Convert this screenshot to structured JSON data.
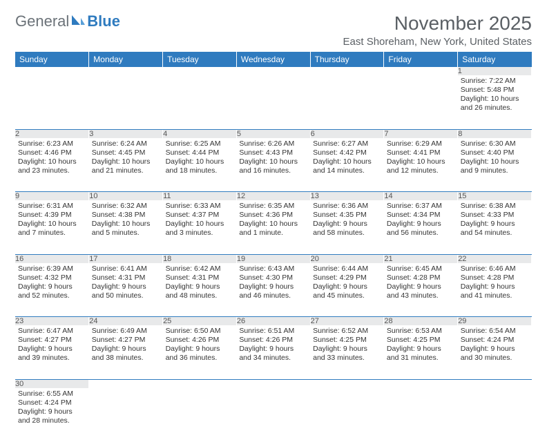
{
  "logo": {
    "word1": "General",
    "word2": "Blue"
  },
  "title": "November 2025",
  "location": "East Shoreham, New York, United States",
  "colors": {
    "header_bg": "#2f7bbf",
    "header_text": "#ffffff",
    "daynum_bg": "#e8e9ea",
    "border": "#2f7bbf",
    "text": "#333333",
    "logo_gray": "#6b7278",
    "logo_blue": "#2f7bbf"
  },
  "days_of_week": [
    "Sunday",
    "Monday",
    "Tuesday",
    "Wednesday",
    "Thursday",
    "Friday",
    "Saturday"
  ],
  "weeks": [
    [
      null,
      null,
      null,
      null,
      null,
      null,
      {
        "n": "1",
        "sr": "Sunrise: 7:22 AM",
        "ss": "Sunset: 5:48 PM",
        "dl": "Daylight: 10 hours and 26 minutes."
      }
    ],
    [
      {
        "n": "2",
        "sr": "Sunrise: 6:23 AM",
        "ss": "Sunset: 4:46 PM",
        "dl": "Daylight: 10 hours and 23 minutes."
      },
      {
        "n": "3",
        "sr": "Sunrise: 6:24 AM",
        "ss": "Sunset: 4:45 PM",
        "dl": "Daylight: 10 hours and 21 minutes."
      },
      {
        "n": "4",
        "sr": "Sunrise: 6:25 AM",
        "ss": "Sunset: 4:44 PM",
        "dl": "Daylight: 10 hours and 18 minutes."
      },
      {
        "n": "5",
        "sr": "Sunrise: 6:26 AM",
        "ss": "Sunset: 4:43 PM",
        "dl": "Daylight: 10 hours and 16 minutes."
      },
      {
        "n": "6",
        "sr": "Sunrise: 6:27 AM",
        "ss": "Sunset: 4:42 PM",
        "dl": "Daylight: 10 hours and 14 minutes."
      },
      {
        "n": "7",
        "sr": "Sunrise: 6:29 AM",
        "ss": "Sunset: 4:41 PM",
        "dl": "Daylight: 10 hours and 12 minutes."
      },
      {
        "n": "8",
        "sr": "Sunrise: 6:30 AM",
        "ss": "Sunset: 4:40 PM",
        "dl": "Daylight: 10 hours and 9 minutes."
      }
    ],
    [
      {
        "n": "9",
        "sr": "Sunrise: 6:31 AM",
        "ss": "Sunset: 4:39 PM",
        "dl": "Daylight: 10 hours and 7 minutes."
      },
      {
        "n": "10",
        "sr": "Sunrise: 6:32 AM",
        "ss": "Sunset: 4:38 PM",
        "dl": "Daylight: 10 hours and 5 minutes."
      },
      {
        "n": "11",
        "sr": "Sunrise: 6:33 AM",
        "ss": "Sunset: 4:37 PM",
        "dl": "Daylight: 10 hours and 3 minutes."
      },
      {
        "n": "12",
        "sr": "Sunrise: 6:35 AM",
        "ss": "Sunset: 4:36 PM",
        "dl": "Daylight: 10 hours and 1 minute."
      },
      {
        "n": "13",
        "sr": "Sunrise: 6:36 AM",
        "ss": "Sunset: 4:35 PM",
        "dl": "Daylight: 9 hours and 58 minutes."
      },
      {
        "n": "14",
        "sr": "Sunrise: 6:37 AM",
        "ss": "Sunset: 4:34 PM",
        "dl": "Daylight: 9 hours and 56 minutes."
      },
      {
        "n": "15",
        "sr": "Sunrise: 6:38 AM",
        "ss": "Sunset: 4:33 PM",
        "dl": "Daylight: 9 hours and 54 minutes."
      }
    ],
    [
      {
        "n": "16",
        "sr": "Sunrise: 6:39 AM",
        "ss": "Sunset: 4:32 PM",
        "dl": "Daylight: 9 hours and 52 minutes."
      },
      {
        "n": "17",
        "sr": "Sunrise: 6:41 AM",
        "ss": "Sunset: 4:31 PM",
        "dl": "Daylight: 9 hours and 50 minutes."
      },
      {
        "n": "18",
        "sr": "Sunrise: 6:42 AM",
        "ss": "Sunset: 4:31 PM",
        "dl": "Daylight: 9 hours and 48 minutes."
      },
      {
        "n": "19",
        "sr": "Sunrise: 6:43 AM",
        "ss": "Sunset: 4:30 PM",
        "dl": "Daylight: 9 hours and 46 minutes."
      },
      {
        "n": "20",
        "sr": "Sunrise: 6:44 AM",
        "ss": "Sunset: 4:29 PM",
        "dl": "Daylight: 9 hours and 45 minutes."
      },
      {
        "n": "21",
        "sr": "Sunrise: 6:45 AM",
        "ss": "Sunset: 4:28 PM",
        "dl": "Daylight: 9 hours and 43 minutes."
      },
      {
        "n": "22",
        "sr": "Sunrise: 6:46 AM",
        "ss": "Sunset: 4:28 PM",
        "dl": "Daylight: 9 hours and 41 minutes."
      }
    ],
    [
      {
        "n": "23",
        "sr": "Sunrise: 6:47 AM",
        "ss": "Sunset: 4:27 PM",
        "dl": "Daylight: 9 hours and 39 minutes."
      },
      {
        "n": "24",
        "sr": "Sunrise: 6:49 AM",
        "ss": "Sunset: 4:27 PM",
        "dl": "Daylight: 9 hours and 38 minutes."
      },
      {
        "n": "25",
        "sr": "Sunrise: 6:50 AM",
        "ss": "Sunset: 4:26 PM",
        "dl": "Daylight: 9 hours and 36 minutes."
      },
      {
        "n": "26",
        "sr": "Sunrise: 6:51 AM",
        "ss": "Sunset: 4:26 PM",
        "dl": "Daylight: 9 hours and 34 minutes."
      },
      {
        "n": "27",
        "sr": "Sunrise: 6:52 AM",
        "ss": "Sunset: 4:25 PM",
        "dl": "Daylight: 9 hours and 33 minutes."
      },
      {
        "n": "28",
        "sr": "Sunrise: 6:53 AM",
        "ss": "Sunset: 4:25 PM",
        "dl": "Daylight: 9 hours and 31 minutes."
      },
      {
        "n": "29",
        "sr": "Sunrise: 6:54 AM",
        "ss": "Sunset: 4:24 PM",
        "dl": "Daylight: 9 hours and 30 minutes."
      }
    ],
    [
      {
        "n": "30",
        "sr": "Sunrise: 6:55 AM",
        "ss": "Sunset: 4:24 PM",
        "dl": "Daylight: 9 hours and 28 minutes."
      },
      null,
      null,
      null,
      null,
      null,
      null
    ]
  ]
}
